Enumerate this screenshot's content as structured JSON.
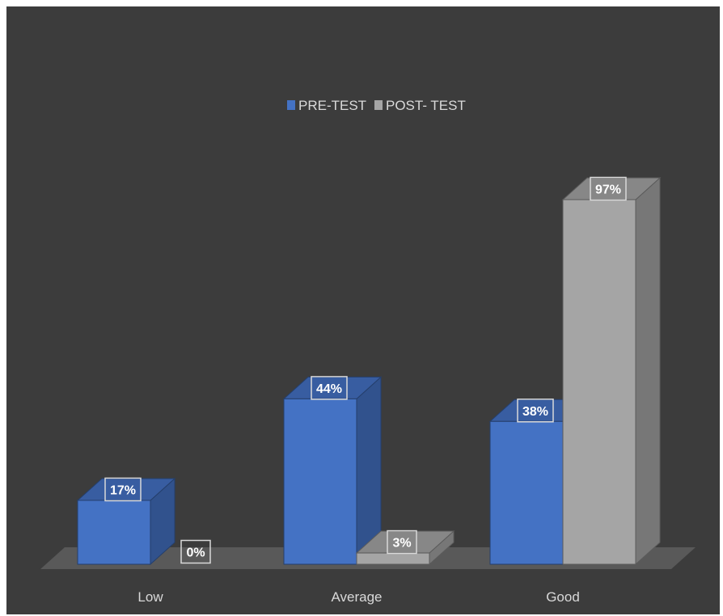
{
  "chart_data": {
    "type": "bar",
    "title": "",
    "xlabel": "",
    "ylabel": "",
    "ylim": [
      0,
      100
    ],
    "grid": false,
    "legend": "top-center",
    "categories": [
      "Low",
      "Average",
      "Good"
    ],
    "series": [
      {
        "name": "PRE-TEST",
        "values": [
          17,
          44,
          38
        ],
        "labels": [
          "17%",
          "44%",
          "38%"
        ],
        "color": "#4472c4"
      },
      {
        "name": "POST- TEST",
        "values": [
          0,
          3,
          97
        ],
        "labels": [
          "0%",
          "3%",
          "97%"
        ],
        "color": "#a5a5a5"
      }
    ]
  },
  "colors": {
    "background": "#3c3c3c",
    "floor": "#595959",
    "text": "#d9d9d9",
    "label_border": "#d9d9d9"
  }
}
